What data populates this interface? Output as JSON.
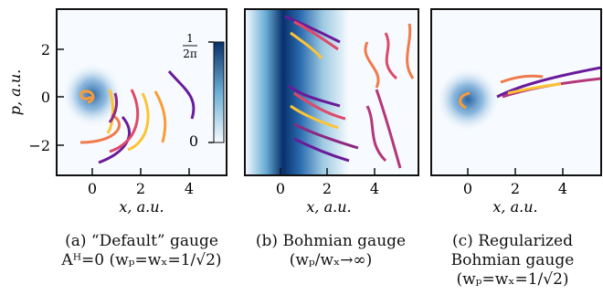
{
  "panels": [
    {
      "id": "a",
      "xlabel": "x, a.u.",
      "ylabel": "p, a.u.",
      "xticks": [
        "0",
        "2",
        "4"
      ],
      "yticks": [
        "2",
        "0",
        "−2"
      ],
      "colorbar": {
        "top_label_num": "1",
        "top_label_den": "2π",
        "bottom_label": "0"
      },
      "caption": [
        "(a) “Default” gauge",
        "Aᴴ=0 (wₚ=wₓ=1/√2)"
      ]
    },
    {
      "id": "b",
      "xlabel": "x, a.u.",
      "xticks": [
        "0",
        "2",
        "4"
      ],
      "caption": [
        "(b) Bohmian gauge",
        "(wₚ/wₓ→∞)"
      ]
    },
    {
      "id": "c",
      "xlabel": "x, a.u.",
      "xticks": [
        "0",
        "2",
        "4"
      ],
      "caption": [
        "(c) Regularized",
        "Bohmian gauge",
        "(wₚ=wₓ=1/√2)"
      ]
    }
  ],
  "colors": {
    "density": "#1f5b9b",
    "trajectories": [
      "#3b0f70",
      "#6a1b9a",
      "#8c2981",
      "#b5367a",
      "#de4968",
      "#f07a4c",
      "#fb9b35",
      "#fcc434",
      "#fde725"
    ]
  }
}
